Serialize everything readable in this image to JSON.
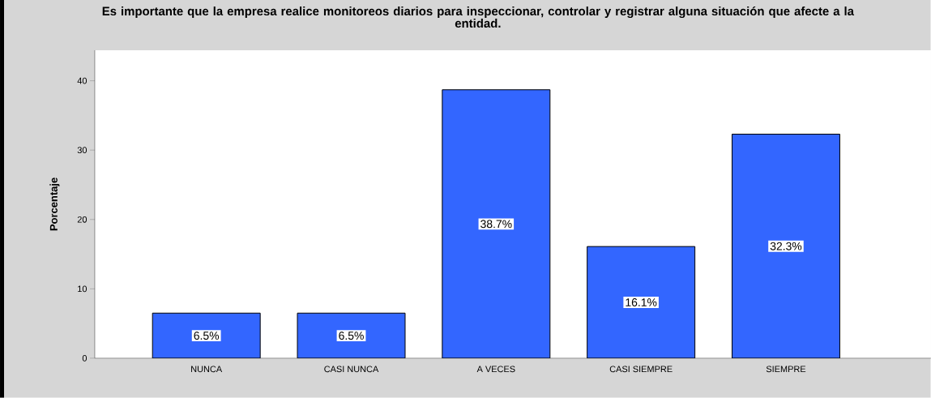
{
  "chart_data": {
    "type": "bar",
    "title": "Es importante que la empresa realice monitoreos diarios para inspeccionar, controlar y registrar alguna situación que afecte a la entidad.",
    "ylabel": "Porcentaje",
    "categories": [
      "NUNCA",
      "CASI NUNCA",
      "A VECES",
      "CASI SIEMPRE",
      "SIEMPRE"
    ],
    "values": [
      6.5,
      6.5,
      38.7,
      16.1,
      32.3
    ],
    "value_labels": [
      "6.5%",
      "6.5%",
      "38.7%",
      "16.1%",
      "32.3%"
    ],
    "color": "#3366ff",
    "ylim": [
      0,
      44.4
    ],
    "yticks": [
      0,
      10,
      20,
      30,
      40
    ]
  }
}
